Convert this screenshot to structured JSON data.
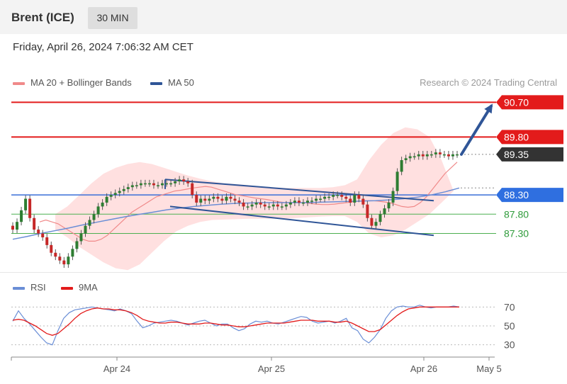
{
  "header": {
    "title": "Brent (ICE)",
    "timeframe": "30 MIN"
  },
  "date": "Friday, April 26, 2024 7:06:32 AM CET",
  "legend": {
    "ma20": "MA 20 + Bollinger Bands",
    "ma50": "MA 50",
    "credit": "Research © 2024 Trading Central"
  },
  "rsi_legend": {
    "rsi": "RSI",
    "ma9": "9MA"
  },
  "colors": {
    "bull": "#2e7d32",
    "bear": "#c62828",
    "resistance": "#e31b1b",
    "support_blue": "#3a6fd8",
    "support_green": "#4caf50",
    "channel": "#2f5597",
    "band": "#ffd6d6",
    "ma20": "#f08a8a",
    "ma50": "#6a8ed6",
    "rsi": "#6a8ed6",
    "ma9": "#e31b1b"
  },
  "chart_data": [
    {
      "type": "line",
      "title": "Brent (ICE)",
      "ylim": [
        86.3,
        91.0
      ],
      "x_ticks": [
        "Apr 24",
        "Apr 25",
        "Apr 26",
        "May 5"
      ],
      "levels": [
        {
          "value": 90.7,
          "label": "90.70",
          "kind": "resistance"
        },
        {
          "value": 89.8,
          "label": "89.80",
          "kind": "resistance"
        },
        {
          "value": 89.35,
          "label": "89.35",
          "kind": "last"
        },
        {
          "value": 88.3,
          "label": "88.30",
          "kind": "pivot"
        },
        {
          "value": 87.8,
          "label": "87.80",
          "kind": "support"
        },
        {
          "value": 87.3,
          "label": "87.30",
          "kind": "support"
        }
      ],
      "close": [
        87.4,
        87.6,
        87.9,
        88.2,
        87.7,
        87.4,
        87.3,
        87.2,
        87.0,
        86.8,
        86.7,
        86.6,
        86.5,
        86.7,
        86.9,
        87.1,
        87.3,
        87.5,
        87.65,
        87.8,
        88.0,
        88.1,
        88.25,
        88.3,
        88.35,
        88.4,
        88.45,
        88.5,
        88.55,
        88.55,
        88.6,
        88.6,
        88.6,
        88.55,
        88.55,
        88.6,
        88.6,
        88.6,
        88.65,
        88.7,
        88.65,
        88.6,
        88.3,
        88.1,
        88.2,
        88.15,
        88.2,
        88.25,
        88.2,
        88.15,
        88.25,
        88.2,
        88.15,
        88.1,
        88.0,
        88.0,
        88.05,
        88.1,
        88.05,
        88.0,
        88.0,
        88.05,
        88.0,
        88.0,
        88.05,
        88.1,
        88.15,
        88.1,
        88.1,
        88.15,
        88.15,
        88.2,
        88.2,
        88.25,
        88.25,
        88.3,
        88.3,
        88.25,
        88.2,
        88.1,
        88.3,
        88.2,
        88.05,
        87.7,
        87.5,
        87.6,
        87.8,
        87.95,
        88.1,
        88.4,
        88.9,
        89.2,
        89.25,
        89.3,
        89.3,
        89.35,
        89.3,
        89.35,
        89.35,
        89.4,
        89.35,
        89.35,
        89.3,
        89.35,
        89.35
      ],
      "ma20": [
        87.6,
        87.65,
        87.6,
        87.55,
        87.45,
        87.35,
        87.25,
        87.15,
        87.1,
        87.1,
        87.15,
        87.25,
        87.4,
        87.55,
        87.7,
        87.85,
        87.95,
        88.05,
        88.15,
        88.25,
        88.3,
        88.35,
        88.4,
        88.42,
        88.45,
        88.48,
        88.5,
        88.52,
        88.5,
        88.45,
        88.4,
        88.35,
        88.3,
        88.28,
        88.25,
        88.22,
        88.2,
        88.18,
        88.15,
        88.12,
        88.1,
        88.1,
        88.1,
        88.1,
        88.08,
        88.06,
        88.05,
        88.05,
        88.06,
        88.08,
        88.1,
        88.12,
        88.14,
        88.15,
        88.15,
        88.14,
        88.12,
        88.1,
        88.05,
        88.0,
        87.98,
        88.0,
        88.1,
        88.25,
        88.45,
        88.65,
        88.85,
        89.0,
        89.15
      ],
      "ma50": [
        87.15,
        87.22,
        87.3,
        87.37,
        87.44,
        87.52,
        87.59,
        87.66,
        87.73,
        87.79,
        87.85,
        87.91,
        87.96,
        88.0,
        88.03,
        88.06,
        88.08,
        88.09,
        88.1,
        88.1,
        88.1,
        88.1,
        88.11,
        88.12,
        88.13,
        88.14,
        88.15,
        88.17,
        88.2,
        88.24,
        88.3,
        88.38,
        88.48
      ],
      "bands_upper": [
        87.8,
        88.0,
        88.3,
        88.6,
        88.85,
        89.0,
        89.1,
        89.15,
        89.1,
        89.0,
        88.9,
        88.8,
        88.72,
        88.65,
        88.6,
        88.58,
        88.55,
        88.52,
        88.5,
        88.48,
        88.48,
        88.48,
        88.48,
        88.5,
        88.55,
        88.7,
        89.2,
        89.6,
        89.9,
        90.05,
        90.0,
        89.8,
        89.2,
        88.4
      ],
      "bands_lower": [
        87.4,
        87.2,
        86.95,
        86.75,
        86.55,
        86.4,
        86.35,
        86.5,
        86.8,
        87.1,
        87.35,
        87.5,
        87.6,
        87.65,
        87.66,
        87.67,
        87.68,
        87.68,
        87.68,
        87.68,
        87.7,
        87.72,
        87.74,
        87.75,
        87.75,
        87.6,
        87.3,
        87.2,
        87.25,
        87.4,
        87.6,
        87.8,
        88.1,
        88.4
      ]
    },
    {
      "type": "line",
      "title": "RSI",
      "ylim": [
        20,
        80
      ],
      "y_ticks": [
        "70",
        "50",
        "30"
      ],
      "series": [
        {
          "name": "RSI",
          "values": [
            55,
            66,
            58,
            52,
            45,
            38,
            32,
            30,
            45,
            58,
            64,
            67,
            68,
            69,
            70,
            69,
            68,
            67,
            66,
            68,
            66,
            63,
            55,
            48,
            50,
            53,
            54,
            55,
            56,
            55,
            53,
            51,
            53,
            55,
            56,
            53,
            50,
            52,
            52,
            48,
            45,
            47,
            52,
            55,
            54,
            55,
            53,
            52,
            54,
            56,
            58,
            60,
            59,
            55,
            53,
            54,
            55,
            53,
            55,
            58,
            48,
            45,
            36,
            32,
            38,
            46,
            58,
            66,
            70,
            71,
            70,
            70,
            72,
            70,
            69,
            70,
            70,
            70,
            71,
            70
          ]
        },
        {
          "name": "9MA",
          "values": [
            56,
            57,
            56,
            53,
            50,
            46,
            42,
            40,
            42,
            47,
            52,
            58,
            63,
            66,
            68,
            69,
            68,
            68,
            67,
            67,
            66,
            64,
            61,
            57,
            55,
            54,
            53,
            53,
            54,
            54,
            53,
            52,
            52,
            52,
            53,
            53,
            52,
            51,
            51,
            50,
            49,
            49,
            50,
            51,
            52,
            53,
            53,
            53,
            53,
            54,
            55,
            56,
            56,
            56,
            55,
            55,
            55,
            54,
            54,
            55,
            53,
            50,
            47,
            44,
            44,
            46,
            51,
            56,
            61,
            65,
            68,
            69,
            70,
            70,
            70,
            70,
            70,
            70,
            70,
            70
          ]
        }
      ]
    }
  ]
}
